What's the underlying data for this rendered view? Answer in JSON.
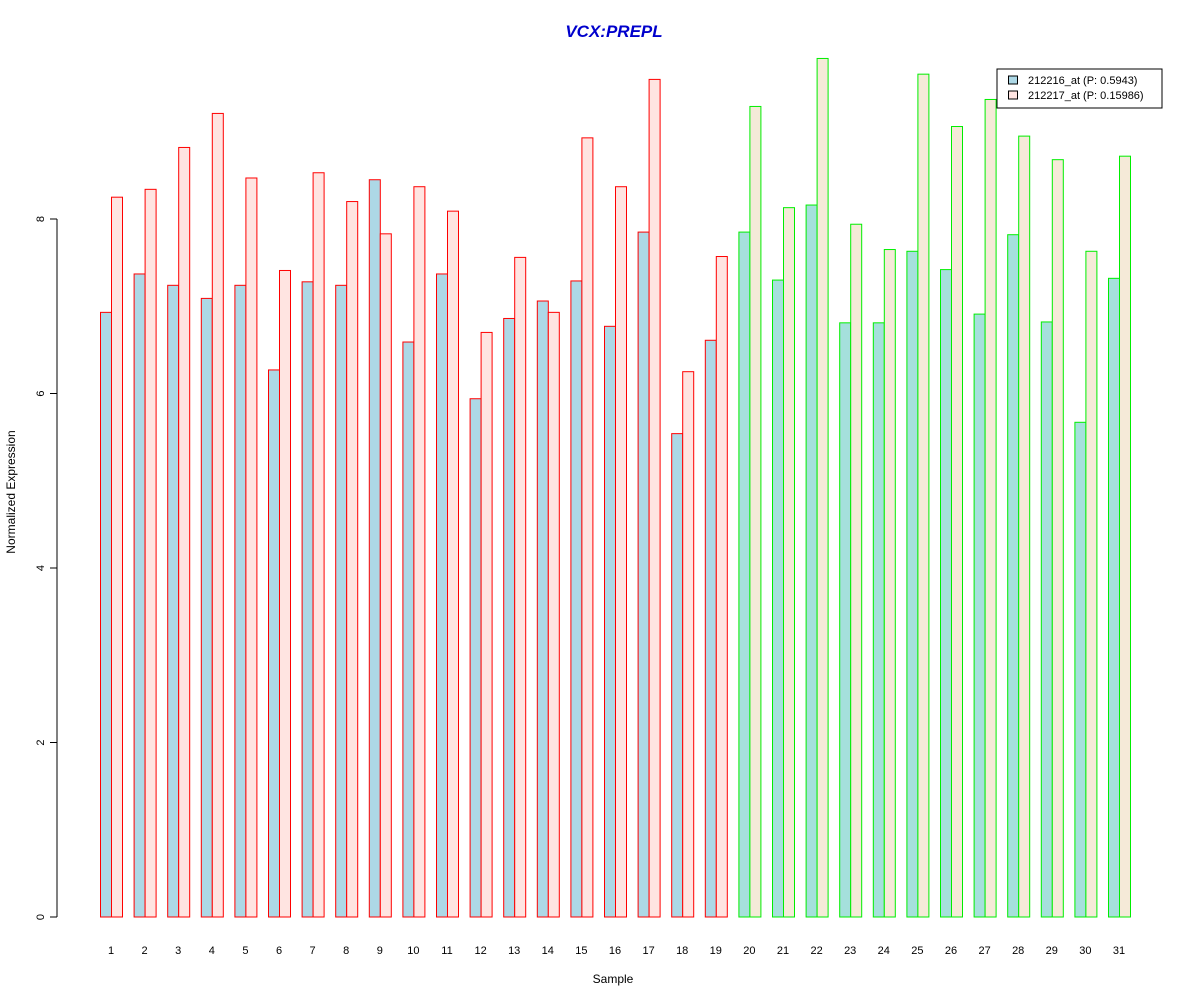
{
  "chart_data": {
    "type": "bar",
    "title": "VCX:PREPL",
    "title_color": "#0000cc",
    "xlabel": "Sample",
    "ylabel": "Normalized Expression",
    "ylim": [
      0,
      10
    ],
    "y_ticks": [
      0,
      2,
      4,
      6,
      8
    ],
    "grid": false,
    "legend_position": "top-right",
    "categories": [
      "1",
      "2",
      "3",
      "4",
      "5",
      "6",
      "7",
      "8",
      "9",
      "10",
      "11",
      "12",
      "13",
      "14",
      "15",
      "16",
      "17",
      "18",
      "19",
      "20",
      "21",
      "22",
      "23",
      "24",
      "25",
      "26",
      "27",
      "28",
      "29",
      "30",
      "31"
    ],
    "series": [
      {
        "name": "212216_at (P: 0.5943)",
        "fill": "#add8e6",
        "values": [
          6.93,
          7.37,
          7.24,
          7.09,
          7.24,
          6.27,
          7.28,
          7.24,
          8.45,
          6.59,
          7.37,
          5.94,
          6.86,
          7.06,
          7.29,
          6.77,
          7.85,
          5.54,
          6.61,
          7.85,
          7.3,
          8.16,
          6.81,
          6.81,
          7.63,
          7.42,
          6.91,
          7.82,
          6.82,
          5.67,
          7.32
        ]
      },
      {
        "name": "212217_at (P: 0.15986)",
        "fill": "#ffe4e1",
        "values": [
          8.25,
          8.34,
          8.82,
          9.21,
          8.47,
          7.41,
          8.53,
          8.2,
          7.83,
          8.37,
          8.09,
          6.7,
          7.56,
          6.93,
          8.93,
          8.37,
          9.6,
          6.25,
          7.57,
          9.29,
          8.13,
          9.84,
          7.94,
          7.65,
          9.66,
          9.06,
          9.37,
          8.95,
          8.68,
          7.63,
          8.72
        ]
      }
    ],
    "group_border_colors": [
      "#ff0000",
      "#ff0000",
      "#ff0000",
      "#ff0000",
      "#ff0000",
      "#ff0000",
      "#ff0000",
      "#ff0000",
      "#ff0000",
      "#ff0000",
      "#ff0000",
      "#ff0000",
      "#ff0000",
      "#ff0000",
      "#ff0000",
      "#ff0000",
      "#ff0000",
      "#ff0000",
      "#ff0000",
      "#00ee00",
      "#00ee00",
      "#00ee00",
      "#00ee00",
      "#00ee00",
      "#00ee00",
      "#00ee00",
      "#00ee00",
      "#00ee00",
      "#00ee00",
      "#00ee00",
      "#00ee00"
    ],
    "group_fill_overrides": {
      "from_index": 19,
      "series_fills": [
        "#a5e0dc",
        "#f5ead8"
      ]
    }
  }
}
